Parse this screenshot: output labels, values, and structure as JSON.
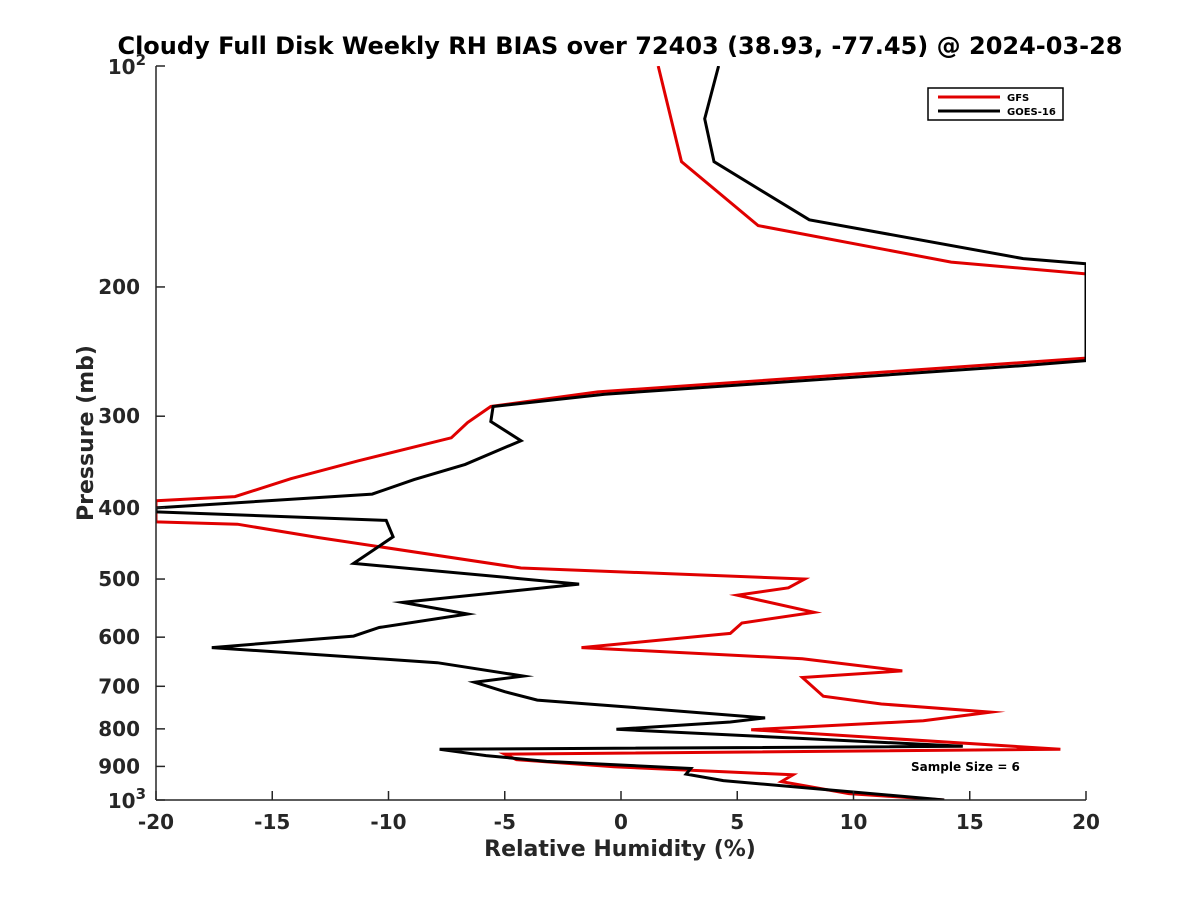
{
  "chart_data": {
    "type": "line",
    "title": "Cloudy Full Disk Weekly RH BIAS over 72403 (38.93, -77.45) @ 2024-03-28",
    "xlabel": "Relative Humidity (%)",
    "ylabel": "Pressure (mb)",
    "xlim": [
      -20,
      20
    ],
    "ylim": [
      1000,
      100
    ],
    "yscale": "log",
    "y_reversed": true,
    "grid": false,
    "legend_position": "top-right",
    "x_ticks": [
      -20,
      -15,
      -10,
      -5,
      0,
      5,
      10,
      15,
      20
    ],
    "x_tick_labels": [
      "-20",
      "-15",
      "-10",
      "-5",
      "0",
      "5",
      "10",
      "15",
      "20"
    ],
    "y_ticks": [
      100,
      200,
      300,
      400,
      500,
      600,
      700,
      800,
      900,
      1000
    ],
    "y_tick_labels": [
      {
        "base": "10",
        "exp": "2"
      },
      {
        "base": "200",
        "exp": ""
      },
      {
        "base": "300",
        "exp": ""
      },
      {
        "base": "400",
        "exp": ""
      },
      {
        "base": "500",
        "exp": ""
      },
      {
        "base": "600",
        "exp": ""
      },
      {
        "base": "700",
        "exp": ""
      },
      {
        "base": "800",
        "exp": ""
      },
      {
        "base": "900",
        "exp": ""
      },
      {
        "base": "10",
        "exp": "3"
      }
    ],
    "annotation": "Sample Size = 6",
    "series": [
      {
        "name": "GFS",
        "color": "#e00000",
        "points": [
          [
            1.6,
            100
          ],
          [
            2.6,
            135
          ],
          [
            5.9,
            165
          ],
          [
            14.2,
            185
          ],
          [
            20,
            192
          ],
          [
            20,
            250
          ],
          [
            -1.0,
            278
          ],
          [
            -5.6,
            291
          ],
          [
            -6.6,
            306
          ],
          [
            -7.3,
            321
          ],
          [
            -11.3,
            345
          ],
          [
            -14.2,
            365
          ],
          [
            -16.6,
            386
          ],
          [
            -20,
            391
          ],
          [
            -20,
            418
          ],
          [
            -16.5,
            421
          ],
          [
            -13.0,
            439
          ],
          [
            -4.3,
            483
          ],
          [
            7.9,
            500
          ],
          [
            7.2,
            514
          ],
          [
            5.0,
            526
          ],
          [
            8.3,
            555
          ],
          [
            5.2,
            574
          ],
          [
            4.7,
            593
          ],
          [
            -1.7,
            620
          ],
          [
            7.8,
            642
          ],
          [
            12.1,
            667
          ],
          [
            7.8,
            681
          ],
          [
            8.7,
            722
          ],
          [
            11.2,
            740
          ],
          [
            15.9,
            759
          ],
          [
            13.0,
            780
          ],
          [
            5.6,
            802
          ],
          [
            18.9,
            853
          ],
          [
            -5.0,
            866
          ],
          [
            -4.5,
            881
          ],
          [
            -0.3,
            901
          ],
          [
            7.4,
            924
          ],
          [
            6.9,
            944
          ],
          [
            9.8,
            980
          ],
          [
            13.9,
            1000
          ]
        ]
      },
      {
        "name": "GOES-16",
        "color": "#000000",
        "points": [
          [
            4.2,
            100
          ],
          [
            3.6,
            118
          ],
          [
            4.0,
            135
          ],
          [
            8.1,
            162
          ],
          [
            17.3,
            183
          ],
          [
            20,
            186
          ],
          [
            20,
            252
          ],
          [
            17.3,
            256
          ],
          [
            -0.7,
            280
          ],
          [
            -5.5,
            291
          ],
          [
            -5.6,
            305
          ],
          [
            -4.3,
            324
          ],
          [
            -6.7,
            349
          ],
          [
            -8.9,
            366
          ],
          [
            -10.7,
            383
          ],
          [
            -20,
            400
          ],
          [
            -20,
            405
          ],
          [
            -10.1,
            416
          ],
          [
            -9.8,
            438
          ],
          [
            -11.5,
            476
          ],
          [
            -1.8,
            508
          ],
          [
            -9.4,
            538
          ],
          [
            -6.6,
            558
          ],
          [
            -10.4,
            582
          ],
          [
            -11.5,
            598
          ],
          [
            -17.6,
            620
          ],
          [
            -7.9,
            650
          ],
          [
            -4.2,
            678
          ],
          [
            -6.3,
            691
          ],
          [
            -5.0,
            712
          ],
          [
            -3.6,
            731
          ],
          [
            0.5,
            748
          ],
          [
            6.2,
            773
          ],
          [
            4.7,
            783
          ],
          [
            -0.2,
            801
          ],
          [
            14.7,
            845
          ],
          [
            -7.8,
            853
          ],
          [
            -5.8,
            870
          ],
          [
            -3.2,
            886
          ],
          [
            3.0,
            906
          ],
          [
            2.8,
            922
          ],
          [
            4.4,
            941
          ],
          [
            13.9,
            1000
          ]
        ]
      }
    ]
  }
}
